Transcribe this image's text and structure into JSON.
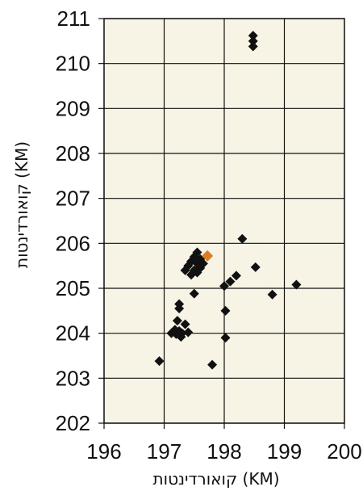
{
  "chart_data": {
    "type": "scatter",
    "title": "",
    "xlabel": "קואורדינטות (KM)",
    "ylabel": "קואורדינטות (KM)",
    "xlim": [
      196,
      200
    ],
    "ylim": [
      202,
      211
    ],
    "x_ticks": [
      196,
      197,
      198,
      199,
      200
    ],
    "y_ticks": [
      202,
      203,
      204,
      205,
      206,
      207,
      208,
      209,
      210,
      211
    ],
    "grid": true,
    "legend": "none",
    "colors": {
      "plot_background": "#f7f4e6",
      "grid": "#111111",
      "point": "#111111",
      "highlight": "#e07b1f"
    },
    "series": [
      {
        "color": "#111111",
        "marker": "diamond",
        "points": [
          {
            "x": 198.48,
            "y": 210.62
          },
          {
            "x": 198.48,
            "y": 210.5
          },
          {
            "x": 198.48,
            "y": 210.38
          },
          {
            "x": 198.3,
            "y": 206.1
          },
          {
            "x": 198.52,
            "y": 205.47
          },
          {
            "x": 199.2,
            "y": 205.08
          },
          {
            "x": 198.8,
            "y": 204.86
          },
          {
            "x": 198.2,
            "y": 205.28
          },
          {
            "x": 198.1,
            "y": 205.15
          },
          {
            "x": 198.0,
            "y": 205.05
          },
          {
            "x": 198.02,
            "y": 204.5
          },
          {
            "x": 198.02,
            "y": 203.9
          },
          {
            "x": 197.8,
            "y": 203.3
          },
          {
            "x": 196.92,
            "y": 203.38
          },
          {
            "x": 197.55,
            "y": 205.8
          },
          {
            "x": 197.5,
            "y": 205.7
          },
          {
            "x": 197.6,
            "y": 205.65
          },
          {
            "x": 197.45,
            "y": 205.6
          },
          {
            "x": 197.55,
            "y": 205.55
          },
          {
            "x": 197.4,
            "y": 205.5
          },
          {
            "x": 197.65,
            "y": 205.55
          },
          {
            "x": 197.6,
            "y": 205.45
          },
          {
            "x": 197.35,
            "y": 205.4
          },
          {
            "x": 197.55,
            "y": 205.35
          },
          {
            "x": 197.45,
            "y": 205.3
          },
          {
            "x": 197.5,
            "y": 205.4
          },
          {
            "x": 197.5,
            "y": 204.88
          },
          {
            "x": 197.25,
            "y": 204.65
          },
          {
            "x": 197.25,
            "y": 204.55
          },
          {
            "x": 197.22,
            "y": 204.28
          },
          {
            "x": 197.35,
            "y": 204.2
          },
          {
            "x": 197.18,
            "y": 204.08
          },
          {
            "x": 197.25,
            "y": 204.05
          },
          {
            "x": 197.3,
            "y": 204.0
          },
          {
            "x": 197.4,
            "y": 204.02
          },
          {
            "x": 197.28,
            "y": 203.92
          },
          {
            "x": 197.2,
            "y": 203.98
          },
          {
            "x": 197.12,
            "y": 204.0
          }
        ]
      },
      {
        "color": "#e07b1f",
        "marker": "diamond",
        "points": [
          {
            "x": 197.72,
            "y": 205.72
          }
        ]
      }
    ]
  }
}
